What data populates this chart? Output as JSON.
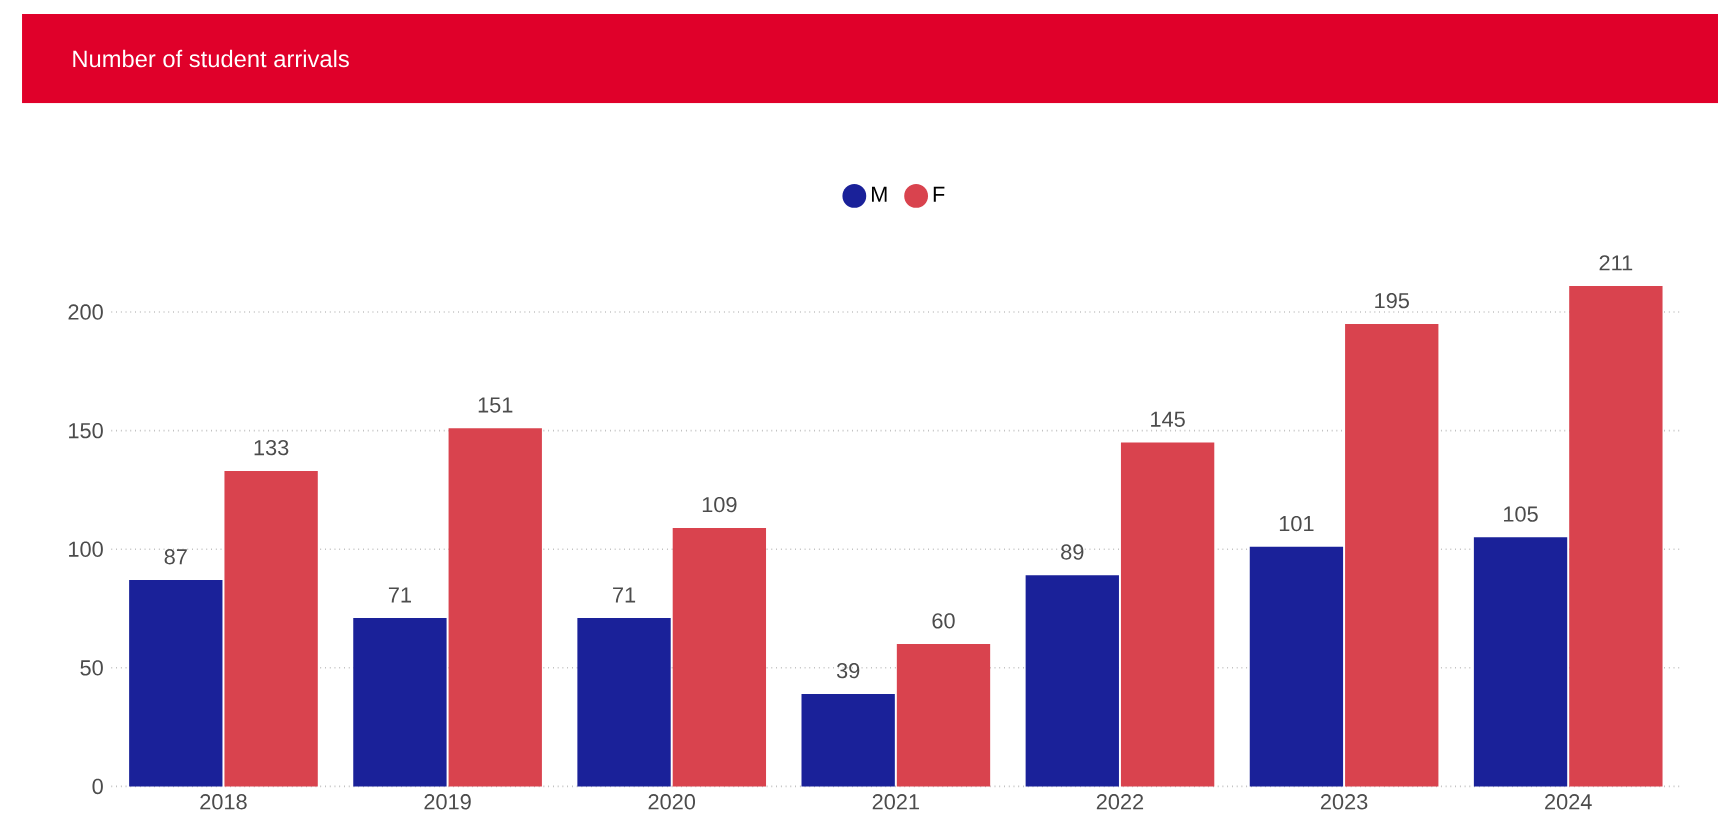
{
  "chart_data": {
    "type": "bar",
    "title": "Number of student arrivals",
    "categories": [
      "2018",
      "2019",
      "2020",
      "2021",
      "2022",
      "2023",
      "2024"
    ],
    "series": [
      {
        "name": "M",
        "color": "#1a2199",
        "values": [
          87,
          71,
          71,
          39,
          89,
          101,
          105
        ]
      },
      {
        "name": "F",
        "color": "#d9434e",
        "values": [
          133,
          151,
          109,
          60,
          145,
          195,
          211
        ]
      }
    ],
    "ylim": [
      0,
      211
    ],
    "yticks": [
      0,
      50,
      100,
      150,
      200
    ],
    "grid": "y",
    "legend": "top",
    "data_labels": true
  }
}
